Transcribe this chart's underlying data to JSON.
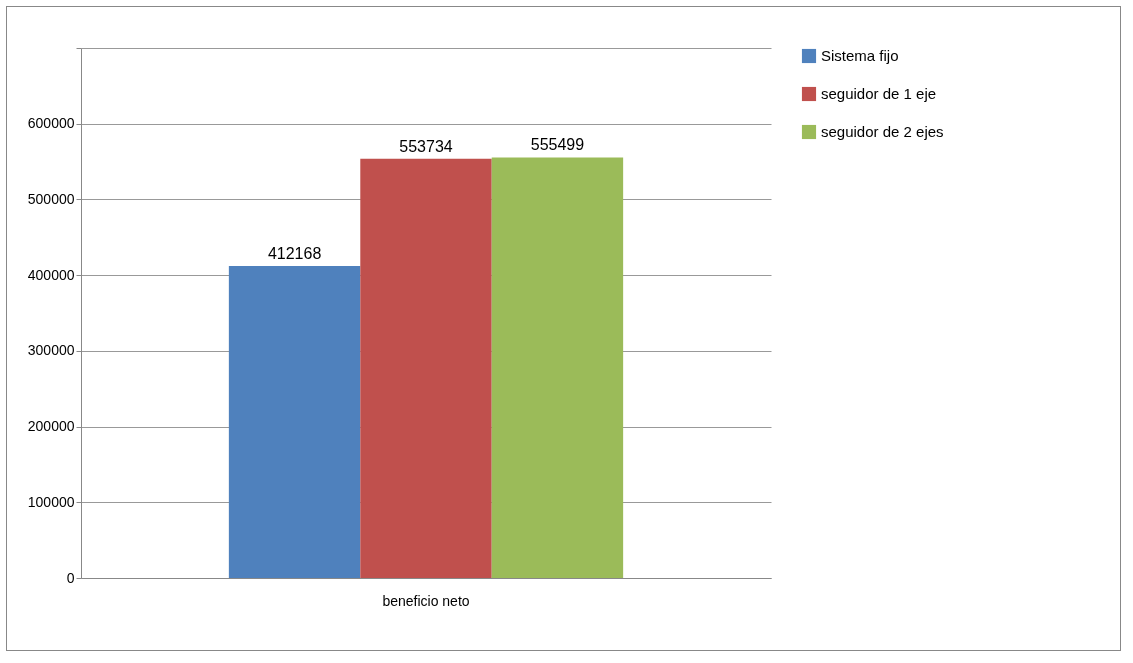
{
  "chart_data": {
    "type": "bar",
    "categories": [
      "beneficio neto"
    ],
    "series": [
      {
        "name": "Sistema fijo",
        "color": "#4f81bd",
        "values": [
          412168
        ]
      },
      {
        "name": "seguidor de 1 eje",
        "color": "#c0504d",
        "values": [
          553734
        ]
      },
      {
        "name": "seguidor de 2 ejes",
        "color": "#9bbb59",
        "values": [
          555499
        ]
      }
    ],
    "ylim": [
      0,
      700000
    ],
    "yticks": [
      0,
      100000,
      200000,
      300000,
      400000,
      500000,
      600000,
      {
        "value": 700000,
        "label": null
      }
    ],
    "grid": "y",
    "legend": "right",
    "data_labels": true
  }
}
